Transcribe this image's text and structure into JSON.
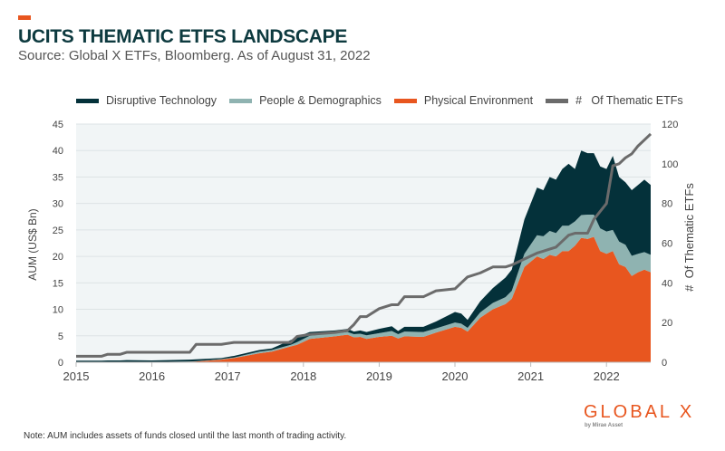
{
  "header": {
    "title": "UCITS THEMATIC ETFS LANDSCAPE",
    "subtitle": "Source: Global X ETFs, Bloomberg. As of August 31, 2022"
  },
  "footer": {
    "note": "Note: AUM includes assets of funds closed until the last month of trading activity.",
    "logo_text": "GLOBAL X",
    "logo_sub": "by Mirae Asset"
  },
  "colors": {
    "disruptive": "#04313a",
    "people": "#8fb3b1",
    "physical": "#e8561f",
    "count": "#6b6b6b",
    "plot_bg": "#f1f5f6",
    "title": "#0d3a3f"
  },
  "chart_data": {
    "type": "area",
    "stacked": true,
    "legend_position": "top",
    "grid": true,
    "xlabel": "",
    "ylabel": "AUM (US$ Bn)",
    "y2label": "#  Of Thematic ETFs",
    "ylim": [
      0,
      45
    ],
    "y2lim": [
      0,
      120
    ],
    "xticks": [
      "2015",
      "2016",
      "2017",
      "2018",
      "2019",
      "2020",
      "2021",
      "2022"
    ],
    "yticks": [
      0,
      5,
      10,
      15,
      20,
      25,
      30,
      35,
      40,
      45
    ],
    "y2ticks": [
      0,
      20,
      40,
      60,
      80,
      100,
      120
    ],
    "x": [
      "2015-01",
      "2015-05",
      "2015-06",
      "2015-08",
      "2015-09",
      "2016-01",
      "2016-07",
      "2016-08",
      "2016-12",
      "2017-02",
      "2017-06",
      "2017-08",
      "2017-11",
      "2017-12",
      "2018-02",
      "2018-06",
      "2018-08",
      "2018-09",
      "2018-10",
      "2018-11",
      "2019-01",
      "2019-03",
      "2019-04",
      "2019-05",
      "2019-08",
      "2019-10",
      "2020-01",
      "2020-02",
      "2020-03",
      "2020-05",
      "2020-07",
      "2020-09",
      "2020-10",
      "2020-12",
      "2021-02",
      "2021-03",
      "2021-04",
      "2021-05",
      "2021-06",
      "2021-07",
      "2021-08",
      "2021-09",
      "2021-10",
      "2021-11",
      "2021-12",
      "2022-01",
      "2022-02",
      "2022-03",
      "2022-04",
      "2022-05",
      "2022-06",
      "2022-07",
      "2022-08"
    ],
    "series": [
      {
        "name": "Physical Environment",
        "axis": "left",
        "kind": "area",
        "values": [
          0,
          0,
          0,
          0,
          0,
          0,
          0.1,
          0.15,
          0.5,
          0.8,
          1.7,
          2.0,
          3.0,
          3.3,
          4.4,
          4.9,
          5.2,
          4.7,
          4.8,
          4.4,
          4.8,
          5.0,
          4.5,
          4.9,
          4.8,
          5.6,
          6.7,
          6.5,
          5.8,
          8.4,
          10,
          11,
          12,
          18,
          20,
          19.5,
          20.3,
          20,
          21,
          21,
          22,
          23.5,
          23.3,
          23.7,
          21,
          20.5,
          21,
          18.5,
          18,
          16.3,
          17,
          17.5,
          17
        ]
      },
      {
        "name": "People & Demographics",
        "axis": "left",
        "kind": "area",
        "values": [
          0.05,
          0.05,
          0.05,
          0.05,
          0.05,
          0.05,
          0.05,
          0.05,
          0.1,
          0.1,
          0.3,
          0.3,
          0.3,
          0.5,
          0.6,
          0.6,
          0.5,
          0.6,
          0.6,
          0.7,
          0.7,
          0.9,
          0.8,
          0.9,
          0.9,
          0.8,
          0.8,
          0.8,
          0.7,
          1.0,
          1.2,
          1.3,
          1.5,
          2.5,
          4,
          4.3,
          4.5,
          4.4,
          4.8,
          4.8,
          4.6,
          4.3,
          4.6,
          4.2,
          4.3,
          4.2,
          4,
          4.3,
          4.2,
          3.8,
          3.5,
          3.3,
          3.3
        ]
      },
      {
        "name": "Disruptive Technology",
        "axis": "left",
        "kind": "area",
        "values": [
          0.25,
          0.25,
          0.3,
          0.3,
          0.35,
          0.3,
          0.35,
          0.35,
          0.2,
          0.3,
          0.3,
          0.3,
          0.9,
          1.0,
          0.7,
          0.5,
          0.6,
          0.5,
          0.6,
          0.6,
          0.8,
          0.9,
          0.6,
          0.9,
          1.0,
          1.3,
          2.0,
          1.9,
          1.5,
          2.1,
          2.8,
          3.7,
          4.0,
          6.5,
          9,
          8.7,
          10.2,
          10.1,
          10.7,
          11.7,
          9.9,
          12.2,
          11.6,
          11.6,
          11.7,
          11.8,
          14,
          12.2,
          11.8,
          12.4,
          13,
          13.7,
          13.2
        ]
      },
      {
        "name": "#   Of Thematic ETFs",
        "axis": "right",
        "kind": "line",
        "values": [
          3,
          3,
          4,
          4,
          5,
          5,
          5,
          9,
          9,
          10,
          10,
          10,
          10,
          13,
          14,
          15,
          16,
          19,
          23,
          23,
          27,
          29,
          29,
          33,
          33,
          36,
          37,
          40,
          43,
          45,
          48,
          48,
          49,
          52,
          55,
          56,
          57,
          58,
          61,
          64,
          65,
          65,
          65,
          72,
          76,
          80,
          99,
          100,
          103,
          105,
          109,
          112,
          115
        ]
      }
    ],
    "legend": [
      "Disruptive Technology",
      "People & Demographics",
      "Physical Environment",
      "#   Of Thematic ETFs"
    ]
  }
}
